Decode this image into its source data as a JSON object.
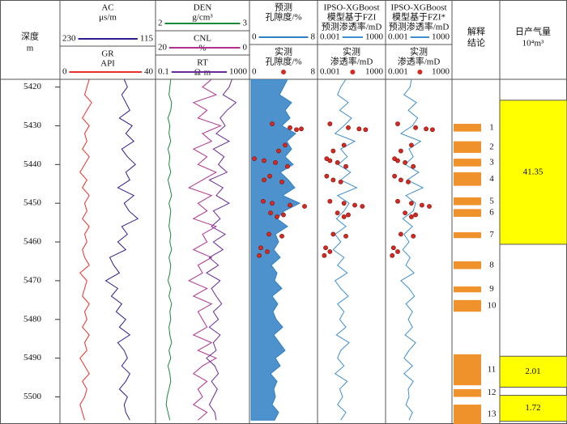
{
  "chart_data": {
    "type": "well_log",
    "depth_title": "深度",
    "depth_unit": "m",
    "ylim": [
      5418,
      5507
    ],
    "yticks": [
      5420,
      5430,
      5440,
      5450,
      5460,
      5470,
      5480,
      5490,
      5500
    ],
    "depth": [
      5418,
      5420,
      5422,
      5424,
      5426,
      5428,
      5430,
      5432,
      5434,
      5436,
      5438,
      5440,
      5442,
      5444,
      5446,
      5448,
      5450,
      5452,
      5454,
      5456,
      5458,
      5460,
      5462,
      5464,
      5466,
      5468,
      5470,
      5472,
      5474,
      5476,
      5478,
      5480,
      5482,
      5484,
      5486,
      5488,
      5490,
      5492,
      5494,
      5496,
      5498,
      5500,
      5502,
      5504,
      5506
    ],
    "tracks": [
      {
        "curves": [
          {
            "label": [
              "AC",
              "μs/m"
            ],
            "color": "#2e1f8f",
            "xlim": [
              230,
              115
            ],
            "values": [
              152,
              148,
              155,
              150,
              145,
              158,
              142,
              150,
              140,
              155,
              148,
              138,
              150,
              145,
              160,
              140,
              152,
              146,
              135,
              155,
              148,
              160,
              150,
              170,
              165,
              158,
              175,
              160,
              168,
              155,
              162,
              150,
              158,
              145,
              160,
              152,
              148,
              155,
              145,
              150,
              158,
              148,
              152,
              150,
              145
            ]
          },
          {
            "label": [
              "GR",
              "API"
            ],
            "color": "#e8302a",
            "xlim": [
              0,
              40
            ],
            "values": [
              12,
              11,
              10,
              13,
              11,
              9,
              12,
              10,
              11,
              9,
              12,
              10,
              8,
              11,
              9,
              12,
              10,
              11,
              9,
              12,
              10,
              11,
              9,
              10,
              12,
              8,
              11,
              10,
              9,
              12,
              10,
              11,
              9,
              12,
              10,
              11,
              8,
              10,
              12,
              9,
              11,
              10,
              8,
              9,
              10
            ]
          }
        ]
      },
      {
        "curves": [
          {
            "label": [
              "DEN",
              "g/cm³"
            ],
            "color": "#1a8a3a",
            "xlim": [
              2,
              3
            ],
            "values": [
              2.15,
              2.14,
              2.13,
              2.16,
              2.15,
              2.12,
              2.14,
              2.13,
              2.15,
              2.12,
              2.14,
              2.13,
              2.15,
              2.12,
              2.14,
              2.16,
              2.13,
              2.15,
              2.14,
              2.13,
              2.15,
              2.14,
              2.16,
              2.13,
              2.15,
              2.14,
              2.12,
              2.15,
              2.13,
              2.16,
              2.14,
              2.15,
              2.13,
              2.14,
              2.16,
              2.13,
              2.15,
              2.12,
              2.14,
              2.15,
              2.13,
              2.11,
              2.1,
              2.12,
              2.14
            ]
          },
          {
            "label": [
              "CNL",
              "%"
            ],
            "color": "#b0308f",
            "xlim": [
              20,
              0
            ],
            "values": [
              8,
              10,
              7,
              12,
              9,
              11,
              6,
              10,
              8,
              12,
              9,
              11,
              7,
              10,
              13,
              8,
              11,
              9,
              12,
              7,
              10,
              9,
              12,
              8,
              11,
              10,
              13,
              9,
              12,
              8,
              11,
              10,
              9,
              12,
              8,
              11,
              7,
              10,
              12,
              9,
              11,
              10,
              12,
              9,
              11
            ]
          },
          {
            "label": [
              "RT",
              "Ω·m"
            ],
            "color": "#6a2a9a",
            "xlim": [
              0.1,
              1000
            ],
            "log": true,
            "values": [
              200,
              150,
              80,
              300,
              120,
              60,
              100,
              40,
              150,
              30,
              90,
              50,
              120,
              20,
              80,
              40,
              150,
              30,
              60,
              25,
              100,
              30,
              80,
              20,
              50,
              15,
              60,
              25,
              40,
              70,
              30,
              50,
              20,
              60,
              30,
              40,
              15,
              35,
              50,
              25,
              45,
              30,
              20,
              35,
              40
            ]
          }
        ]
      },
      {
        "curves": [
          {
            "label": [
              "预测",
              "孔隙度/%"
            ],
            "color": "#2f7fc4",
            "xlim": [
              0,
              8
            ],
            "fill": true,
            "values": [
              4.5,
              4.0,
              3.5,
              5.0,
              4.2,
              4.8,
              3.8,
              5.5,
              4.4,
              5.0,
              4.2,
              5.2,
              3.6,
              4.6,
              5.4,
              3.9,
              6.0,
              4.1,
              3.2,
              4.5,
              3.0,
              3.4,
              2.8,
              3.6,
              2.5,
              3.2,
              2.9,
              3.8,
              2.6,
              3.3,
              2.7,
              3.1,
              3.9,
              2.8,
              3.5,
              4.2,
              3.0,
              3.6,
              2.4,
              3.2,
              2.8,
              3.0,
              2.6,
              3.4,
              2.9
            ]
          },
          {
            "label": [
              "实测",
              "孔隙度/%"
            ],
            "color": "#d42a20",
            "xlim": [
              0,
              8
            ],
            "marker": "dot",
            "depths": [
              5429.5,
              5430.5,
              5430.8,
              5431,
              5435,
              5436.5,
              5438.5,
              5439,
              5439.5,
              5440.5,
              5443,
              5444,
              5444.5,
              5449.5,
              5450,
              5450.5,
              5450.8,
              5452.5,
              5453,
              5453.5,
              5458,
              5458.5,
              5461.5,
              5462.5,
              5463.5
            ],
            "values": [
              2.6,
              4.8,
              6.2,
              5.6,
              4.2,
              3.4,
              0.4,
              1.6,
              3.0,
              4.5,
              2.3,
              1.6,
              3.8,
              1.5,
              2.6,
              4.8,
              6.6,
              2.4,
              4.0,
              3.2,
              2.2,
              3.8,
              1.2,
              2.0,
              1.0
            ]
          }
        ]
      },
      {
        "curves": [
          {
            "label": [
              "IPSO-XGBoost",
              "模型基于FZI",
              "预测渗透率/mD"
            ],
            "color": "#3f8fd0",
            "xlim": [
              0.001,
              1000
            ],
            "log": true,
            "values": [
              0.3,
              0.1,
              0.05,
              0.5,
              0.08,
              1,
              0.2,
              0.03,
              2,
              0.1,
              0.4,
              0.06,
              0.8,
              0.1,
              3,
              0.05,
              0.6,
              0.2,
              0.04,
              0.3,
              0.03,
              0.1,
              0.02,
              0.2,
              0.05,
              0.4,
              0.03,
              0.1,
              0.5,
              0.05,
              0.2,
              0.08,
              0.3,
              0.04,
              0.6,
              0.1,
              0.05,
              0.2,
              0.03,
              0.4,
              0.08,
              0.15,
              0.05,
              0.3,
              0.1
            ]
          },
          {
            "label": [
              "实测",
              "渗透率/mD"
            ],
            "color": "#d42a20",
            "xlim": [
              0.001,
              1000
            ],
            "log": true,
            "marker": "dot",
            "depths": [
              5429.5,
              5430.5,
              5430.8,
              5431,
              5435,
              5436.5,
              5438.5,
              5439,
              5439.5,
              5440.5,
              5443,
              5444,
              5444.5,
              5449.5,
              5450,
              5450.5,
              5450.8,
              5452.5,
              5453,
              5453.5,
              5458,
              5458.5,
              5461.5,
              5462.5,
              5463.5
            ],
            "values": [
              0.01,
              0.5,
              5,
              20,
              0.2,
              0.02,
              0.005,
              0.01,
              0.05,
              0.3,
              0.005,
              0.02,
              0.1,
              0.01,
              0.2,
              2,
              10,
              0.05,
              0.5,
              0.2,
              0.02,
              0.3,
              0.004,
              0.01,
              0.003
            ]
          }
        ]
      },
      {
        "curves": [
          {
            "label": [
              "IPSO-XGBoost",
              "模型基于FZI*",
              "预测渗透率/mD"
            ],
            "color": "#3f8fd0",
            "xlim": [
              0.001,
              1000
            ],
            "log": true,
            "values": [
              0.2,
              0.15,
              0.04,
              0.6,
              0.1,
              0.8,
              0.25,
              0.02,
              1.5,
              0.12,
              0.3,
              0.05,
              1,
              0.08,
              2.5,
              0.06,
              0.5,
              0.3,
              0.03,
              0.25,
              0.04,
              0.12,
              0.03,
              0.15,
              0.06,
              0.35,
              0.02,
              0.12,
              0.4,
              0.06,
              0.25,
              0.1,
              0.25,
              0.05,
              0.5,
              0.12,
              0.04,
              0.25,
              0.04,
              0.3,
              0.1,
              0.12,
              0.06,
              0.25,
              0.12
            ]
          },
          {
            "label": [
              "实测",
              "渗透率/mD"
            ],
            "color": "#d42a20",
            "xlim": [
              0.001,
              1000
            ],
            "log": true,
            "marker": "dot",
            "depths": [
              5429.5,
              5430.5,
              5430.8,
              5431,
              5435,
              5436.5,
              5438.5,
              5439,
              5439.5,
              5440.5,
              5443,
              5444,
              5444.5,
              5449.5,
              5450,
              5450.5,
              5450.8,
              5452.5,
              5453,
              5453.5,
              5458,
              5458.5,
              5461.5,
              5462.5,
              5463.5
            ],
            "values": [
              0.01,
              0.5,
              5,
              20,
              0.2,
              0.02,
              0.005,
              0.01,
              0.05,
              0.3,
              0.005,
              0.02,
              0.1,
              0.01,
              0.2,
              2,
              10,
              0.05,
              0.5,
              0.2,
              0.02,
              0.3,
              0.004,
              0.01,
              0.003
            ]
          }
        ]
      }
    ],
    "layers_title": [
      "解释",
      "结论"
    ],
    "layer_color": "#f0922b",
    "layers": [
      {
        "id": 1,
        "top": 5429.5,
        "bottom": 5431.5
      },
      {
        "id": 2,
        "top": 5434,
        "bottom": 5437
      },
      {
        "id": 3,
        "top": 5438.5,
        "bottom": 5440.5
      },
      {
        "id": 4,
        "top": 5442,
        "bottom": 5445.5
      },
      {
        "id": 5,
        "top": 5448.5,
        "bottom": 5450.5
      },
      {
        "id": 6,
        "top": 5451.5,
        "bottom": 5453.5
      },
      {
        "id": 7,
        "top": 5457.5,
        "bottom": 5459
      },
      {
        "id": 8,
        "top": 5465,
        "bottom": 5467
      },
      {
        "id": 9,
        "top": 5471.5,
        "bottom": 5473
      },
      {
        "id": 10,
        "top": 5475,
        "bottom": 5478
      },
      {
        "id": 11,
        "top": 5489,
        "bottom": 5497
      },
      {
        "id": 12,
        "top": 5498,
        "bottom": 5500
      },
      {
        "id": 13,
        "top": 5502,
        "bottom": 5507
      }
    ],
    "gas_title": [
      "日产气量",
      "10⁴m³"
    ],
    "gas_color": "#ffff00",
    "gas": [
      {
        "value": 41.35,
        "top": 5423.4,
        "bottom": 5460.6
      },
      {
        "value": 2.01,
        "top": 5489.5,
        "bottom": 5497.5
      },
      {
        "value": 1.72,
        "top": 5499.6,
        "bottom": 5506.3
      }
    ]
  }
}
